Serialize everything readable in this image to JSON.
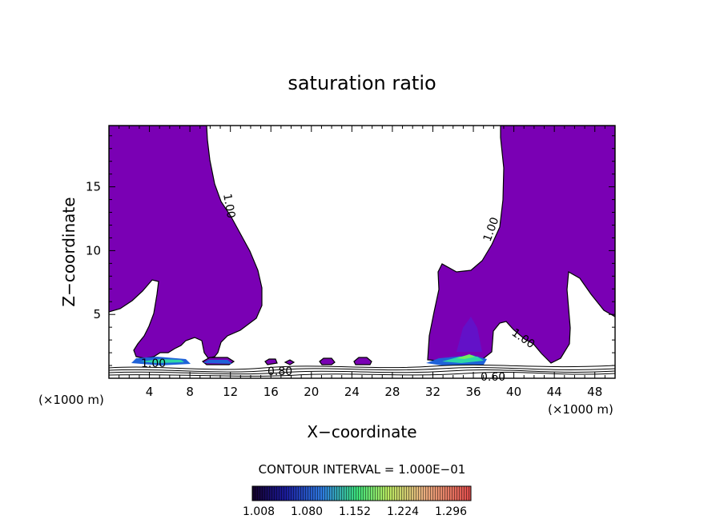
{
  "chart_data": {
    "type": "contour",
    "title": "saturation ratio",
    "xlabel": "X−coordinate",
    "ylabel": "Z−coordinate",
    "x_unit_left": "(×1000 m)",
    "x_unit_right": "(×1000 m)",
    "xlim": [
      0,
      50
    ],
    "ylim": [
      0,
      19.8
    ],
    "x_ticks": [
      4,
      8,
      12,
      16,
      20,
      24,
      28,
      32,
      36,
      40,
      44,
      48
    ],
    "x_tick_labels": [
      "4",
      "8",
      "12",
      "16",
      "20",
      "24",
      "28",
      "32",
      "36",
      "40",
      "44",
      "48"
    ],
    "y_ticks": [
      5,
      10,
      15
    ],
    "y_tick_labels": [
      "5",
      "10",
      "15"
    ],
    "contour_interval_text": "CONTOUR INTERVAL = 1.000E−01",
    "contour_labels": [
      "1.00",
      "1.00",
      "1.00",
      "1.00",
      "0.80",
      "0.60"
    ],
    "colorbar_labels": [
      "1.008",
      "1.080",
      "1.152",
      "1.224",
      "1.296"
    ],
    "colorbar_range": [
      1.008,
      1.33
    ],
    "fill_color": "#7a00b4"
  }
}
